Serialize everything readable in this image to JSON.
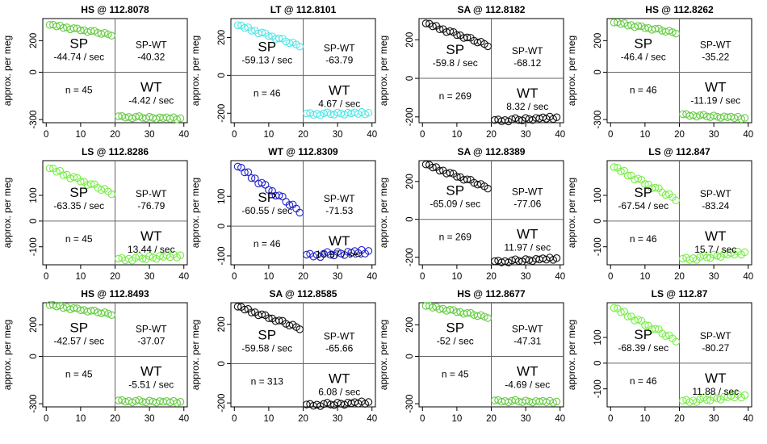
{
  "chart_data": [
    {
      "type": "scatter",
      "title": "HS @ 112.8078",
      "ylabel": "approx. per meg",
      "xlim": [
        -1,
        41
      ],
      "ylim": [
        -320,
        340
      ],
      "xticks": [
        0,
        10,
        20,
        30,
        40
      ],
      "yticks": [
        -300,
        0,
        200
      ],
      "color": "#66cc44",
      "n": "n = 45",
      "sp_label": "SP",
      "sp_rate": "-44.74 / sec",
      "spwt_label": "SP-WT",
      "spwt_value": "-40.32",
      "wt_label": "WT",
      "wt_rate": "-4.42 / sec",
      "sp": {
        "x0": 1,
        "y0": 300,
        "slope": -3.5
      },
      "wt": {
        "x0": 21,
        "y0": -283,
        "slope": -0.6
      }
    },
    {
      "type": "scatter",
      "title": "LT @ 112.8101",
      "ylabel": "approx. per meg",
      "xlim": [
        -1,
        41
      ],
      "ylim": [
        -250,
        300
      ],
      "xticks": [
        0,
        10,
        20,
        30,
        40
      ],
      "yticks": [
        -200,
        0,
        200
      ],
      "color": "#55e6e6",
      "n": "n = 46",
      "sp_label": "SP",
      "sp_rate": "-59.13 / sec",
      "spwt_label": "SP-WT",
      "spwt_value": "-63.79",
      "wt_label": "WT",
      "wt_rate": "4.67 / sec",
      "sp": {
        "x0": 1,
        "y0": 265,
        "slope": -6.0
      },
      "wt": {
        "x0": 21,
        "y0": -205,
        "slope": 0.3
      }
    },
    {
      "type": "scatter",
      "title": "SA @ 112.8182",
      "ylabel": "approx. per meg",
      "xlim": [
        -1,
        41
      ],
      "ylim": [
        -230,
        310
      ],
      "xticks": [
        0,
        10,
        20,
        30,
        40
      ],
      "yticks": [
        -200,
        0,
        200
      ],
      "color": "#111111",
      "n": "n = 269",
      "sp_label": "SP",
      "sp_rate": "-59.8 / sec",
      "spwt_label": "SP-WT",
      "spwt_value": "-68.12",
      "wt_label": "WT",
      "wt_rate": "8.32 / sec",
      "sp": {
        "x0": 1,
        "y0": 285,
        "slope": -6.3
      },
      "wt": {
        "x0": 21,
        "y0": -220,
        "slope": 0.9
      }
    },
    {
      "type": "scatter",
      "title": "HS @ 112.8262",
      "ylabel": "approx. per meg",
      "xlim": [
        -1,
        41
      ],
      "ylim": [
        -320,
        340
      ],
      "xticks": [
        0,
        10,
        20,
        30,
        40
      ],
      "yticks": [
        -300,
        0,
        200
      ],
      "color": "#66cc44",
      "n": "n = 46",
      "sp_label": "SP",
      "sp_rate": "-46.4 / sec",
      "spwt_label": "SP-WT",
      "spwt_value": "-35.22",
      "wt_label": "WT",
      "wt_rate": "-11.19 / sec",
      "sp": {
        "x0": 1,
        "y0": 315,
        "slope": -3.6
      },
      "wt": {
        "x0": 21,
        "y0": -270,
        "slope": -1.2
      }
    },
    {
      "type": "scatter",
      "title": "LS @ 112.8286",
      "ylabel": "approx. per meg",
      "xlim": [
        -1,
        41
      ],
      "ylim": [
        -170,
        235
      ],
      "xticks": [
        0,
        10,
        20,
        30,
        40
      ],
      "yticks": [
        -100,
        0,
        100
      ],
      "color": "#77ee44",
      "n": "n = 45",
      "sp_label": "SP",
      "sp_rate": "-63.35 / sec",
      "spwt_label": "SP-WT",
      "spwt_value": "-76.79",
      "wt_label": "WT",
      "wt_rate": "13.44 / sec",
      "sp": {
        "x0": 1,
        "y0": 205,
        "slope": -5.3
      },
      "wt": {
        "x0": 21,
        "y0": -150,
        "slope": 0.85
      }
    },
    {
      "type": "scatter",
      "title": "WT @ 112.8309",
      "ylabel": "approx. per meg",
      "xlim": [
        -1,
        41
      ],
      "ylim": [
        -130,
        220
      ],
      "xticks": [
        0,
        10,
        20,
        30,
        40
      ],
      "yticks": [
        -100,
        0,
        100
      ],
      "color": "#2222cc",
      "n": "n = 46",
      "sp_label": "SP",
      "sp_rate": "-60.55 / sec",
      "spwt_label": "SP-WT",
      "spwt_value": "-71.53",
      "wt_label": "WT",
      "wt_rate": "10.97 / sec",
      "sp": {
        "x0": 1,
        "y0": 200,
        "slope": -8.3
      },
      "wt": {
        "x0": 21,
        "y0": -100,
        "slope": 0.8
      }
    },
    {
      "type": "scatter",
      "title": "SA @ 112.8389",
      "ylabel": "approx. per meg",
      "xlim": [
        -1,
        41
      ],
      "ylim": [
        -240,
        310
      ],
      "xticks": [
        0,
        10,
        20,
        30,
        40
      ],
      "yticks": [
        -200,
        0,
        200
      ],
      "color": "#111111",
      "n": "n = 269",
      "sp_label": "SP",
      "sp_rate": "-65.09 / sec",
      "spwt_label": "SP-WT",
      "spwt_value": "-77.06",
      "wt_label": "WT",
      "wt_rate": "11.97 / sec",
      "sp": {
        "x0": 1,
        "y0": 290,
        "slope": -6.8
      },
      "wt": {
        "x0": 21,
        "y0": -225,
        "slope": 1.0
      }
    },
    {
      "type": "scatter",
      "title": "LS @ 112.847",
      "ylabel": "approx. per meg",
      "xlim": [
        -1,
        41
      ],
      "ylim": [
        -170,
        235
      ],
      "xticks": [
        0,
        10,
        20,
        30,
        40
      ],
      "yticks": [
        -100,
        0,
        100
      ],
      "color": "#77ee44",
      "n": "n = 46",
      "sp_label": "SP",
      "sp_rate": "-67.54 / sec",
      "spwt_label": "SP-WT",
      "spwt_value": "-83.24",
      "wt_label": "WT",
      "wt_rate": "15.7 / sec",
      "sp": {
        "x0": 1,
        "y0": 210,
        "slope": -6.9
      },
      "wt": {
        "x0": 21,
        "y0": -150,
        "slope": 1.5
      }
    },
    {
      "type": "scatter",
      "title": "HS @ 112.8493",
      "ylabel": "approx. per meg",
      "xlim": [
        -1,
        41
      ],
      "ylim": [
        -320,
        340
      ],
      "xticks": [
        0,
        10,
        20,
        30,
        40
      ],
      "yticks": [
        -300,
        0,
        200
      ],
      "color": "#66cc44",
      "n": "n = 45",
      "sp_label": "SP",
      "sp_rate": "-42.57 / sec",
      "spwt_label": "SP-WT",
      "spwt_value": "-37.07",
      "wt_label": "WT",
      "wt_rate": "-5.51 / sec",
      "sp": {
        "x0": 1,
        "y0": 325,
        "slope": -3.2
      },
      "wt": {
        "x0": 21,
        "y0": -283,
        "slope": -0.4
      }
    },
    {
      "type": "scatter",
      "title": "SA @ 112.8585",
      "ylabel": "approx. per meg",
      "xlim": [
        -1,
        41
      ],
      "ylim": [
        -220,
        310
      ],
      "xticks": [
        0,
        10,
        20,
        30,
        40
      ],
      "yticks": [
        -200,
        0,
        200
      ],
      "color": "#111111",
      "n": "n = 313",
      "sp_label": "SP",
      "sp_rate": "-59.58 / sec",
      "spwt_label": "SP-WT",
      "spwt_value": "-65.66",
      "wt_label": "WT",
      "wt_rate": "6.08 / sec",
      "sp": {
        "x0": 1,
        "y0": 290,
        "slope": -6.1
      },
      "wt": {
        "x0": 21,
        "y0": -212,
        "slope": 0.8
      }
    },
    {
      "type": "scatter",
      "title": "HS @ 112.8677",
      "ylabel": "approx. per meg",
      "xlim": [
        -1,
        41
      ],
      "ylim": [
        -320,
        340
      ],
      "xticks": [
        0,
        10,
        20,
        30,
        40
      ],
      "yticks": [
        -300,
        0,
        200
      ],
      "color": "#66cc44",
      "n": "n = 45",
      "sp_label": "SP",
      "sp_rate": "-52 / sec",
      "spwt_label": "SP-WT",
      "spwt_value": "-47.31",
      "wt_label": "WT",
      "wt_rate": "-4.69 / sec",
      "sp": {
        "x0": 1,
        "y0": 320,
        "slope": -4.0
      },
      "wt": {
        "x0": 21,
        "y0": -283,
        "slope": -0.3
      }
    },
    {
      "type": "scatter",
      "title": "LS @ 112.87",
      "ylabel": "approx. per meg",
      "xlim": [
        -1,
        41
      ],
      "ylim": [
        -170,
        235
      ],
      "xticks": [
        0,
        10,
        20,
        30,
        40
      ],
      "yticks": [
        -100,
        0,
        100
      ],
      "color": "#77ee44",
      "n": "n = 46",
      "sp_label": "SP",
      "sp_rate": "-68.39 / sec",
      "spwt_label": "SP-WT",
      "spwt_value": "-80.27",
      "wt_label": "WT",
      "wt_rate": "11.88 / sec",
      "sp": {
        "x0": 1,
        "y0": 215,
        "slope": -7.0
      },
      "wt": {
        "x0": 21,
        "y0": -150,
        "slope": 1.3
      }
    }
  ]
}
